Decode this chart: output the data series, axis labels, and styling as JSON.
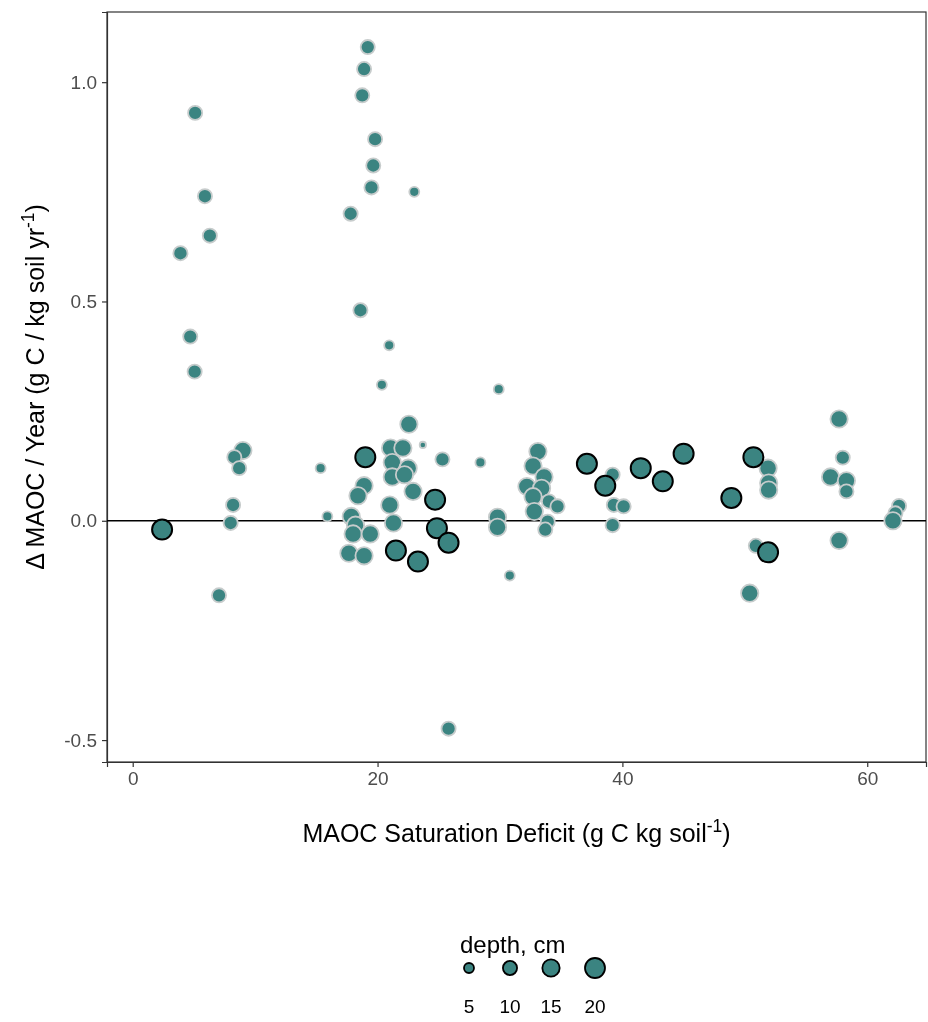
{
  "chart_data": {
    "type": "bubble",
    "xlabel": "MAOC Saturation Deficit (g C kg soil$^{-1}$)",
    "ylabel": "Δ MAOC / Year (g C / kg soil yr$^{-1}$)",
    "legend_title": "depth, cm",
    "size_legend": [
      5,
      10,
      15,
      20
    ],
    "grid": false,
    "marker": "circle",
    "xlim": [
      -2.1,
      64.8
    ],
    "ylim": [
      -0.55,
      1.16
    ],
    "xticks": [
      0,
      20,
      40,
      60
    ],
    "yticks": [
      {
        "value": -0.5,
        "label": "-0.5"
      },
      {
        "value": 0,
        "label": "0.0"
      },
      {
        "value": 0.5,
        "label": "0.5"
      },
      {
        "value": 1,
        "label": "1.0"
      }
    ],
    "ref_lines": [
      {
        "axis": "y",
        "value": 0,
        "color": "#000000"
      }
    ],
    "series": [
      {
        "color": "#3b8481",
        "x": [
          5.1,
          5.9,
          6.3,
          3.9,
          4.7,
          5.06,
          19.2,
          18.9,
          18.75,
          19.8,
          19.65,
          19.5,
          17.8,
          23.0,
          18.6,
          20.95,
          20.35,
          29.9,
          9.0,
          8.3,
          8.7,
          8.2,
          8.0,
          7.05,
          15.35,
          15.9,
          18.9,
          18.4,
          17.85,
          18.2,
          18.0,
          19.4,
          17.66,
          18.9,
          21.06,
          22.07,
          22.56,
          21.2,
          22.5,
          21.2,
          22.2,
          22.9,
          21.0,
          21.3,
          23.7,
          25.3,
          28.4,
          30.8,
          25.8,
          29.8,
          29.8,
          33.1,
          32.7,
          32.2,
          33.6,
          33.4,
          32.7,
          34.0,
          34.7,
          32.8,
          33.9,
          33.7,
          39.2,
          39.3,
          40.1,
          39.2,
          51.9,
          51.95,
          51.95,
          50.9,
          50.4,
          57.7,
          58.0,
          57.0,
          58.3,
          58.3,
          57.7,
          62.6,
          62.3,
          62.1
        ],
        "values": [
          0.93,
          0.74,
          0.65,
          0.61,
          0.42,
          0.34,
          1.08,
          1.03,
          0.97,
          0.87,
          0.81,
          0.76,
          0.7,
          0.75,
          0.48,
          0.4,
          0.31,
          0.3,
          0.16,
          0.145,
          0.12,
          0.036,
          -0.005,
          -0.17,
          0.12,
          0.01,
          0.08,
          0.057,
          0.01,
          -0.01,
          -0.03,
          -0.03,
          -0.074,
          -0.08,
          0.166,
          0.166,
          0.22,
          0.133,
          0.12,
          0.1,
          0.105,
          0.067,
          0.036,
          -0.005,
          0.173,
          0.14,
          0.133,
          -0.125,
          -0.474,
          0.008,
          -0.015,
          0.158,
          0.125,
          0.078,
          0.1,
          0.074,
          0.055,
          0.044,
          0.033,
          0.021,
          -0.002,
          -0.02,
          0.105,
          0.036,
          0.033,
          -0.01,
          0.12,
          0.086,
          0.07,
          -0.057,
          -0.165,
          0.232,
          0.144,
          0.1,
          0.091,
          0.067,
          -0.045,
          0.034,
          0.017,
          0
        ],
        "sizes": [
          10,
          10,
          10,
          10,
          10,
          10,
          10,
          10,
          10,
          10,
          10,
          10,
          10,
          5,
          10,
          5,
          5,
          5,
          15,
          10,
          10,
          10,
          10,
          10,
          5,
          5,
          15,
          15,
          15,
          15,
          15,
          15,
          15,
          15,
          15,
          15,
          15,
          15,
          15,
          15,
          15,
          15,
          15,
          15,
          2,
          10,
          5,
          5,
          10,
          15,
          15,
          15,
          15,
          15,
          15,
          15,
          15,
          10,
          10,
          15,
          10,
          10,
          10,
          10,
          10,
          10,
          15,
          15,
          15,
          10,
          15,
          15,
          10,
          15,
          15,
          10,
          15,
          10,
          10,
          15
        ]
      },
      {
        "color": "#3b8481",
        "x": [
          2.4,
          19.0,
          24.7,
          24.85,
          25.8,
          21.5,
          23.3,
          37.1,
          38.6,
          41.5,
          43.3,
          45.0,
          48.9,
          50.7,
          51.9
        ],
        "values": [
          -0.02,
          0.145,
          0.048,
          -0.017,
          -0.05,
          -0.068,
          -0.093,
          0.13,
          0.08,
          0.12,
          0.09,
          0.153,
          0.052,
          0.145,
          -0.072
        ],
        "sizes": [
          20,
          20,
          20,
          20,
          20,
          20,
          20,
          20,
          20,
          20,
          20,
          20,
          20,
          20,
          20
        ]
      }
    ]
  }
}
